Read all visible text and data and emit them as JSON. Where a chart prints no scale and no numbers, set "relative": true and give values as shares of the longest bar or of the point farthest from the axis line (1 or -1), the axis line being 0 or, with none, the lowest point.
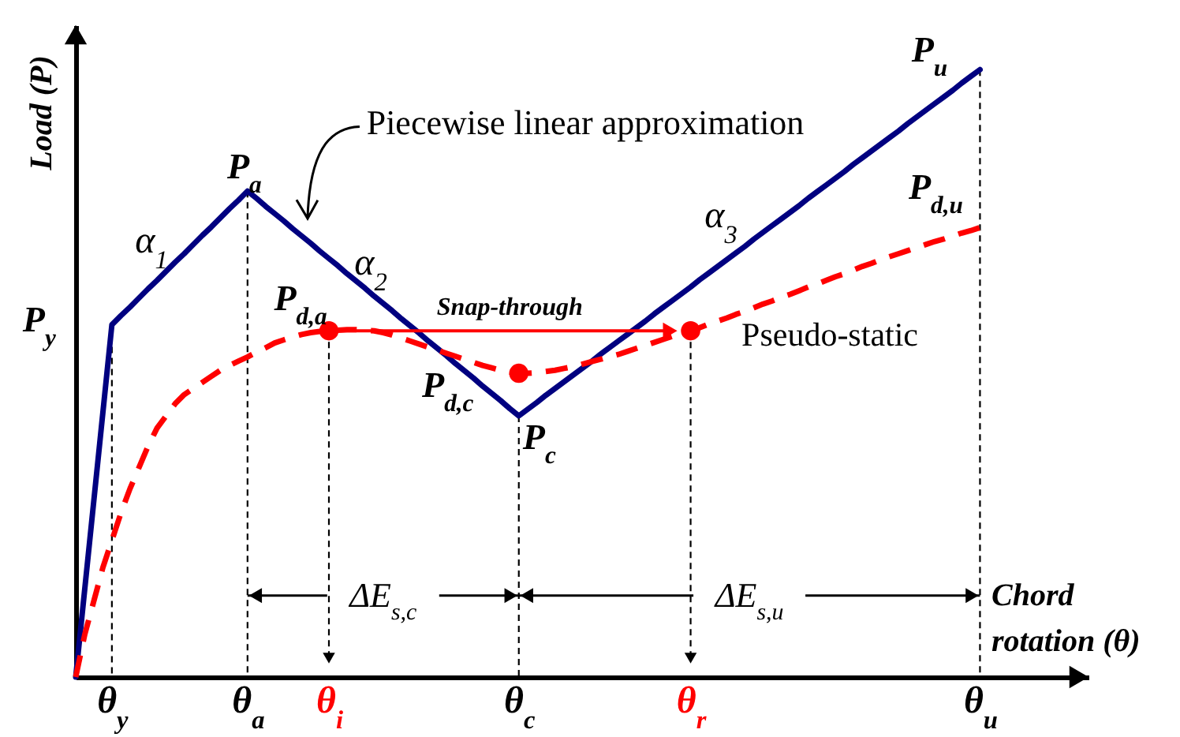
{
  "chart_data": {
    "type": "line",
    "relative": true,
    "xlabel": "Chord rotation (θ)",
    "ylabel": "Load (P)",
    "categories": [
      null,
      null,
      null,
      null,
      "θ$_{y}$",
      null,
      null,
      null,
      null,
      null,
      null,
      null,
      null,
      null,
      null,
      null,
      null,
      null,
      null,
      "θ$_{a}$",
      null,
      null,
      null,
      null,
      null,
      null,
      null,
      null,
      "θ$_{i}$",
      null,
      null,
      null,
      null,
      null,
      null,
      null,
      null,
      null,
      null,
      null,
      null,
      null,
      null,
      null,
      null,
      null,
      null,
      null,
      null,
      "θ$_{c}$",
      null,
      null,
      null,
      null,
      null,
      null,
      null,
      null,
      null,
      null,
      null,
      null,
      null,
      null,
      null,
      null,
      null,
      null,
      "θ$_{r}$",
      null,
      null,
      null,
      null,
      null,
      null,
      null,
      null,
      null,
      null,
      null,
      null,
      null,
      null,
      null,
      null,
      null,
      null,
      null,
      null,
      null,
      null,
      null,
      null,
      null,
      null,
      null,
      null,
      null,
      null,
      null,
      "θ$_{u}$",
      null,
      null,
      null,
      null,
      null,
      null,
      null,
      null,
      null,
      null,
      null,
      null
    ],
    "series": [
      {
        "type": "line",
        "color": "#000080",
        "line_style": "solid",
        "values": [
          0,
          0.145,
          0.29,
          0.435,
          0.58,
          0.595,
          0.609,
          0.624,
          0.639,
          0.653,
          0.668,
          0.683,
          0.697,
          0.712,
          0.727,
          0.741,
          0.756,
          0.771,
          0.785,
          0.8,
          0.788,
          0.775,
          0.763,
          0.751,
          0.738,
          0.726,
          0.714,
          0.701,
          0.689,
          0.677,
          0.664,
          0.652,
          0.64,
          0.627,
          0.615,
          0.603,
          0.59,
          0.578,
          0.566,
          0.553,
          0.541,
          0.529,
          0.516,
          0.504,
          0.492,
          0.479,
          0.467,
          0.455,
          0.442,
          0.43,
          0.441,
          0.452,
          0.464,
          0.475,
          0.486,
          0.497,
          0.508,
          0.519,
          0.531,
          0.542,
          0.553,
          0.564,
          0.575,
          0.586,
          0.598,
          0.609,
          0.62,
          0.631,
          0.642,
          0.654,
          0.665,
          0.676,
          0.687,
          0.698,
          0.709,
          0.721,
          0.732,
          0.743,
          0.754,
          0.765,
          0.776,
          0.788,
          0.799,
          0.81,
          0.821,
          0.832,
          0.844,
          0.855,
          0.866,
          0.877,
          0.888,
          0.899,
          0.911,
          0.922,
          0.933,
          0.944,
          0.955,
          0.966,
          0.978,
          0.989,
          1,
          null,
          null,
          null,
          null,
          null,
          null,
          null,
          null,
          null,
          null,
          null,
          null
        ]
      },
      {
        "type": "scatter",
        "color": "#ff0000",
        "marker": "circle",
        "values": [
          null,
          null,
          null,
          null,
          null,
          null,
          null,
          null,
          null,
          null,
          null,
          null,
          null,
          null,
          null,
          null,
          null,
          null,
          null,
          null,
          null,
          null,
          null,
          null,
          null,
          null,
          null,
          null,
          0.57,
          null,
          null,
          null,
          null,
          null,
          null,
          null,
          null,
          null,
          null,
          null,
          null,
          null,
          null,
          null,
          null,
          null,
          null,
          null,
          null,
          0.5,
          null,
          null,
          null,
          null,
          null,
          null,
          null,
          null,
          null,
          null,
          null,
          null,
          null,
          null,
          null,
          null,
          null,
          null,
          0.57,
          null,
          null,
          null,
          null,
          null,
          null,
          null,
          null,
          null,
          null,
          null,
          null,
          null,
          null,
          null,
          null,
          null,
          null,
          null,
          null,
          null,
          null,
          null,
          null,
          null,
          null,
          null,
          null,
          null,
          null,
          null,
          null,
          null,
          null,
          null,
          null,
          null,
          null,
          null,
          null,
          null,
          null,
          null,
          null
        ]
      },
      {
        "type": "line",
        "color": "#ff0000",
        "line_style": "dashed",
        "values": [
          0,
          0.07,
          0.125,
          0.18,
          0.225,
          0.27,
          0.31,
          0.345,
          0.38,
          0.41,
          0.43,
          0.45,
          0.465,
          0.475,
          0.485,
          0.495,
          0.505,
          0.513,
          0.52,
          0.527,
          0.535,
          0.542,
          0.55,
          0.555,
          0.56,
          0.564,
          0.567,
          0.569,
          0.57,
          0.571,
          0.572,
          0.572,
          0.571,
          0.57,
          0.567,
          0.563,
          0.558,
          0.553,
          0.548,
          0.543,
          0.538,
          0.533,
          0.528,
          0.523,
          0.518,
          0.513,
          0.509,
          0.505,
          0.502,
          0.5,
          0.5,
          0.501,
          0.503,
          0.505,
          0.508,
          0.511,
          0.515,
          0.519,
          0.523,
          0.527,
          0.531,
          0.536,
          0.541,
          0.546,
          0.551,
          0.556,
          0.561,
          0.566,
          0.57,
          0.575,
          0.581,
          0.586,
          0.591,
          0.597,
          0.602,
          0.608,
          0.614,
          0.619,
          0.625,
          0.63,
          0.636,
          0.642,
          0.647,
          0.653,
          0.659,
          0.664,
          0.67,
          0.676,
          0.681,
          0.687,
          0.692,
          0.697,
          0.702,
          0.707,
          0.712,
          0.717,
          0.721,
          0.726,
          0.731,
          0.735,
          0.74,
          null,
          null,
          null,
          null,
          null,
          null,
          null,
          null,
          null,
          null,
          null,
          null
        ]
      }
    ],
    "ref_lines": [
      {
        "axis": "x",
        "value": "θ$_{y}$",
        "color": "#000000",
        "line_style": "dashed"
      },
      {
        "axis": "x",
        "value": "θ$_{a}$",
        "color": "#000000",
        "line_style": "dashed"
      },
      {
        "axis": "x",
        "value": "θ$_{i}$",
        "color": "#000000",
        "line_style": "dashed"
      },
      {
        "axis": "x",
        "value": "θ$_{c}$",
        "color": "#000000",
        "line_style": "dashed"
      },
      {
        "axis": "x",
        "value": "θ$_{r}$",
        "color": "#000000",
        "line_style": "dashed"
      },
      {
        "axis": "x",
        "value": "θ$_{u}$",
        "color": "#000000",
        "line_style": "dashed"
      }
    ],
    "annotations": [
      {
        "text": "P$_{y}$",
        "x": "θ$_{y}$",
        "y": 0.58
      },
      {
        "text": "P$_{a}$",
        "x": "θ$_{a}$",
        "y": 0.8
      },
      {
        "text": "P$_{d,a}$",
        "x": "θ$_{i}$",
        "y": 0.57
      },
      {
        "text": "P$_{d,c}$",
        "x": "θ$_{c}$",
        "y": 0.5
      },
      {
        "text": "P$_{c}$",
        "x": "θ$_{c}$",
        "y": 0.43
      },
      {
        "text": "P$_{u}$",
        "x": "θ$_{u}$",
        "y": 1
      },
      {
        "text": "P$_{d,u}$",
        "x": "θ$_{u}$",
        "y": 0.74
      },
      "α$_{1}$",
      "α$_{2}$",
      "α$_{3}$",
      "Snap-through",
      "Pseudo-static",
      "Piecewise linear approximation",
      "ΔE$_{s,c}$",
      "ΔE$_{s,u}$"
    ]
  }
}
